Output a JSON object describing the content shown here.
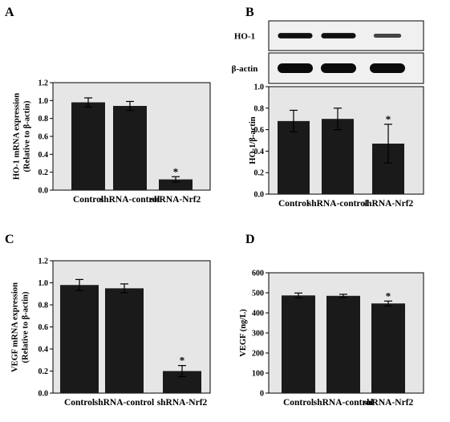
{
  "panels": {
    "A": {
      "letter": "A"
    },
    "B": {
      "letter": "B",
      "blots": [
        {
          "label": "HO-1",
          "intensities": [
            0.95,
            0.95,
            0.45
          ]
        },
        {
          "label": "β-actin",
          "intensities": [
            1.0,
            1.0,
            1.0
          ]
        }
      ]
    },
    "C": {
      "letter": "C"
    },
    "D": {
      "letter": "D"
    }
  },
  "chart_data": [
    {
      "panel": "A",
      "type": "bar",
      "categories": [
        "Control",
        "shRNA-control",
        "shRNA-Nrf2"
      ],
      "values": [
        0.98,
        0.94,
        0.12
      ],
      "errors": [
        0.05,
        0.05,
        0.03
      ],
      "significant": [
        false,
        false,
        true
      ],
      "significance_marker": "*",
      "ylabel_lines": [
        "HO-1 mRNA expression",
        "(Relative to β-actin)"
      ],
      "ylim": [
        0,
        1.2
      ],
      "yticks": [
        0.0,
        0.2,
        0.4,
        0.6,
        0.8,
        1.0,
        1.2
      ],
      "ytick_labels": [
        "0.0",
        "0.2",
        "0.4",
        "0.6",
        "0.8",
        "1.0",
        "1.2"
      ],
      "grid": false
    },
    {
      "panel": "B",
      "type": "bar",
      "categories": [
        "Control",
        "shRNA-control",
        "shRNA-Nrf2"
      ],
      "values": [
        0.68,
        0.7,
        0.47
      ],
      "errors": [
        0.1,
        0.1,
        0.18
      ],
      "significant": [
        false,
        false,
        true
      ],
      "significance_marker": "*",
      "ylabel_lines": [
        "HO-1/β-actin"
      ],
      "ylim": [
        0,
        1.0
      ],
      "yticks": [
        0.0,
        0.2,
        0.4,
        0.6,
        0.8,
        1.0
      ],
      "ytick_labels": [
        "0.0",
        "0.2",
        "0.4",
        "0.6",
        "0.8",
        "1.0"
      ],
      "grid": false
    },
    {
      "panel": "C",
      "type": "bar",
      "categories": [
        "Control",
        "shRNA-control",
        "shRNA-Nrf2"
      ],
      "values": [
        0.98,
        0.95,
        0.2
      ],
      "errors": [
        0.05,
        0.04,
        0.05
      ],
      "significant": [
        false,
        false,
        true
      ],
      "significance_marker": "*",
      "ylabel_lines": [
        "VEGF mRNA expression",
        "(Relative to β-actin)"
      ],
      "ylim": [
        0,
        1.2
      ],
      "yticks": [
        0.0,
        0.2,
        0.4,
        0.6,
        0.8,
        1.0,
        1.2
      ],
      "ytick_labels": [
        "0.0",
        "0.2",
        "0.4",
        "0.6",
        "0.8",
        "1.0",
        "1.2"
      ],
      "grid": false
    },
    {
      "panel": "D",
      "type": "bar",
      "categories": [
        "Control",
        "shRNA-control",
        "shRNA-Nrf2"
      ],
      "values": [
        487,
        485,
        447
      ],
      "errors": [
        12,
        8,
        12
      ],
      "significant": [
        false,
        false,
        true
      ],
      "significance_marker": "*",
      "ylabel_lines": [
        "VEGF (ng/L)"
      ],
      "ylim": [
        0,
        600
      ],
      "yticks": [
        0,
        100,
        200,
        300,
        400,
        500,
        600
      ],
      "ytick_labels": [
        "0",
        "100",
        "200",
        "300",
        "400",
        "500",
        "600"
      ],
      "grid": false
    }
  ]
}
